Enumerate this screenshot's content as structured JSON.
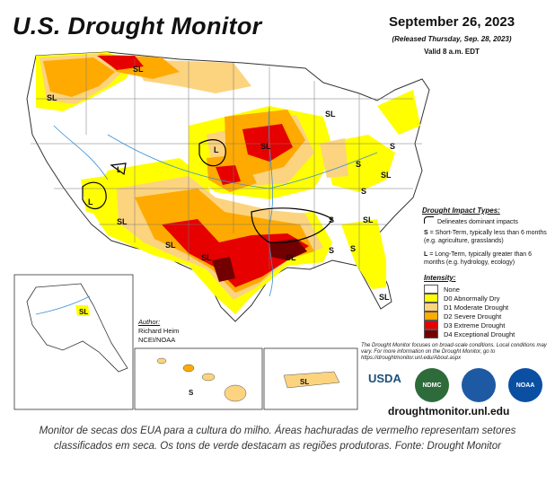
{
  "title": "U.S. Drought Monitor",
  "date": "September 26, 2023",
  "released": "(Released Thursday, Sep. 28, 2023)",
  "valid": "Valid 8 a.m. EDT",
  "impact_types": {
    "title": "Drought Impact Types:",
    "dominant": "Delineates dominant impacts",
    "short_symbol": "S",
    "short_text": "= Short-Term, typically less than 6 months (e.g. agriculture, grasslands)",
    "long_symbol": "L",
    "long_text": "= Long-Term, typically greater than 6 months (e.g. hydrology, ecology)"
  },
  "intensity": {
    "title": "Intensity:",
    "levels": [
      {
        "label": "None",
        "color": "#ffffff"
      },
      {
        "label": "D0 Abnormally Dry",
        "color": "#ffff00"
      },
      {
        "label": "D1 Moderate Drought",
        "color": "#fcd37f"
      },
      {
        "label": "D2 Severe Drought",
        "color": "#ffaa00"
      },
      {
        "label": "D3 Extreme Drought",
        "color": "#e60000"
      },
      {
        "label": "D4 Exceptional Drought",
        "color": "#730000"
      }
    ]
  },
  "note": "The Drought Monitor focuses on broad-scale conditions. Local conditions may vary. For more information on the Drought Monitor, go to https://droughtmonitor.unl.edu/About.aspx",
  "author": {
    "heading": "Author:",
    "name": "Richard Heim",
    "org": "NCEI/NOAA"
  },
  "logos": {
    "usda": "USDA",
    "ndmc": "NDMC",
    "noaa": "NOAA"
  },
  "website": "droughtmonitor.unl.edu",
  "map_labels": {
    "sl_pnw": "SL",
    "sl_or": "SL",
    "sl_mi": "SL",
    "sl_ia": "SL",
    "l_wi": "L",
    "l_ut": "L",
    "l_az": "L",
    "sl_nm": "SL",
    "sl_ok": "SL",
    "sl_tx": "SL",
    "sl_ms": "SL",
    "s_la": "S",
    "s_oh": "S",
    "s_pa": "S",
    "sl_ny": "SL",
    "s_ky": "S",
    "sl_va": "SL",
    "s_al": "S",
    "s_ga": "S",
    "sl_fl": "SL",
    "sl_ak": "SL",
    "s_hi": "S",
    "sl_pr": "SL"
  },
  "caption": "Monitor de secas dos EUA para a cultura do milho. Áreas hachuradas de vermelho representam setores classificados em seca. Os tons de verde destacam as regiões produtoras. Fonte: Drought Monitor"
}
